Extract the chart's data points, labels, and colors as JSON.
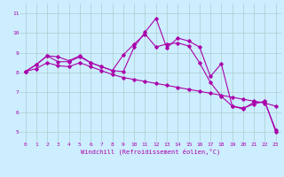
{
  "xlabel": "Windchill (Refroidissement éolien,°C)",
  "background_color": "#cceeff",
  "line_color": "#aa00aa",
  "grid_color": "#aacccc",
  "xlim": [
    -0.5,
    23.5
  ],
  "ylim": [
    4.5,
    11.5
  ],
  "yticks": [
    5,
    6,
    7,
    8,
    9,
    10,
    11
  ],
  "xticks": [
    0,
    1,
    2,
    3,
    4,
    5,
    6,
    7,
    8,
    9,
    10,
    11,
    12,
    13,
    14,
    15,
    16,
    17,
    18,
    19,
    20,
    21,
    22,
    23
  ],
  "line1_x": [
    0,
    1,
    2,
    3,
    4,
    5,
    6,
    7,
    8,
    9,
    10,
    11,
    12,
    13,
    14,
    15,
    16,
    17,
    18,
    19,
    20,
    21,
    22,
    23
  ],
  "line1_y": [
    8.05,
    8.4,
    8.85,
    8.8,
    8.6,
    8.85,
    8.5,
    8.3,
    8.1,
    8.05,
    9.3,
    10.05,
    10.75,
    9.25,
    9.75,
    9.6,
    9.3,
    7.8,
    8.45,
    6.3,
    6.2,
    6.4,
    6.55,
    5.0
  ],
  "line2_x": [
    0,
    1,
    2,
    3,
    4,
    5,
    6,
    7,
    8,
    9,
    10,
    11,
    12,
    13,
    14,
    15,
    16,
    17,
    18,
    19,
    20,
    21,
    22,
    23
  ],
  "line2_y": [
    8.05,
    8.4,
    8.85,
    8.55,
    8.55,
    8.8,
    8.5,
    8.3,
    8.1,
    8.9,
    9.45,
    9.95,
    9.3,
    9.45,
    9.5,
    9.35,
    8.5,
    7.5,
    6.8,
    6.3,
    6.15,
    6.5,
    6.5,
    5.1
  ],
  "line3_x": [
    0,
    1,
    2,
    3,
    4,
    5,
    6,
    7,
    8,
    9,
    10,
    11,
    12,
    13,
    14,
    15,
    16,
    17,
    18,
    19,
    20,
    21,
    22,
    23
  ],
  "line3_y": [
    8.05,
    8.2,
    8.5,
    8.35,
    8.3,
    8.5,
    8.3,
    8.1,
    7.9,
    7.75,
    7.65,
    7.55,
    7.45,
    7.35,
    7.25,
    7.15,
    7.05,
    6.95,
    6.85,
    6.75,
    6.65,
    6.55,
    6.45,
    6.3
  ]
}
